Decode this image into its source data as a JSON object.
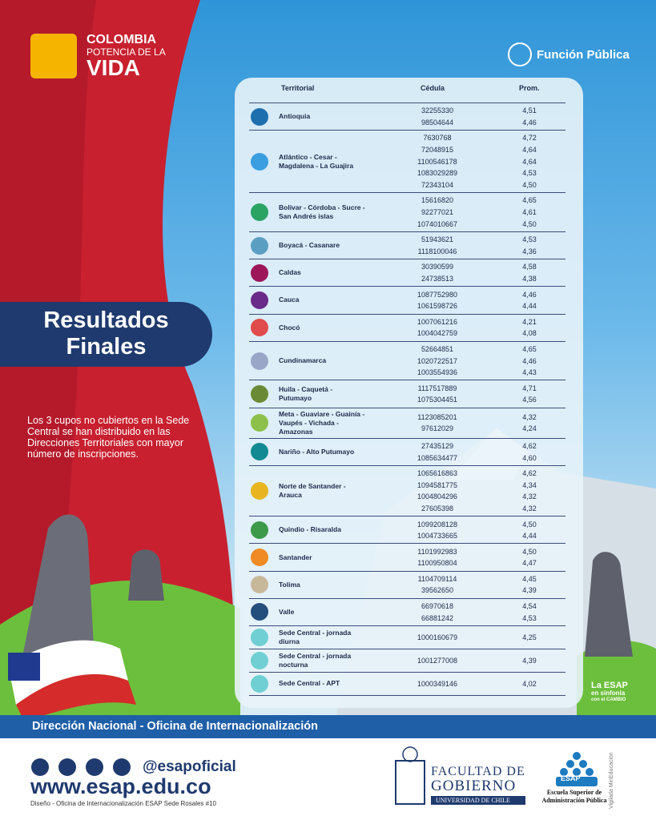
{
  "header": {
    "brand": [
      "COLOMBIA",
      "POTENCIA DE LA",
      "VIDA"
    ],
    "agency": "Función Pública"
  },
  "title": [
    "Resultados",
    "Finales"
  ],
  "note": "Los 3 cupos no cubiertos en la Sede Central se han distribuido en las Direcciones Territoriales con mayor número de inscripciones.",
  "table": {
    "columns": [
      "Territorial",
      "Cédula",
      "Prom."
    ],
    "groups": [
      {
        "territory": "Antioquia",
        "color": "#1d6fae",
        "rows": [
          [
            "32255330",
            "4,51"
          ],
          [
            "98504644",
            "4,46"
          ]
        ]
      },
      {
        "territory": "Atlántico - Cesar - Magdalena - La Guajira",
        "color": "#3a9ee0",
        "rows": [
          [
            "7630768",
            "4,72"
          ],
          [
            "72048915",
            "4,64"
          ],
          [
            "1100546178",
            "4,64"
          ],
          [
            "1083029289",
            "4,53"
          ],
          [
            "72343104",
            "4,50"
          ]
        ]
      },
      {
        "territory": "Bolivar - Córdoba - Sucre - San Andrés islas",
        "color": "#2aa363",
        "rows": [
          [
            "15616820",
            "4,65"
          ],
          [
            "92277021",
            "4,61"
          ],
          [
            "1074010667",
            "4,50"
          ]
        ]
      },
      {
        "territory": "Boyacá - Casanare",
        "color": "#5a9fc2",
        "rows": [
          [
            "51943621",
            "4,53"
          ],
          [
            "1118100046",
            "4,36"
          ]
        ]
      },
      {
        "territory": "Caldas",
        "color": "#9c1659",
        "rows": [
          [
            "30390599",
            "4,58"
          ],
          [
            "24738513",
            "4,38"
          ]
        ]
      },
      {
        "territory": "Cauca",
        "color": "#6a2a8a",
        "rows": [
          [
            "1087752980",
            "4,46"
          ],
          [
            "1061598726",
            "4,44"
          ]
        ]
      },
      {
        "territory": "Chocó",
        "color": "#e04b4b",
        "rows": [
          [
            "1007061216",
            "4,21"
          ],
          [
            "1004042759",
            "4,08"
          ]
        ]
      },
      {
        "territory": "Cundinamarca",
        "color": "#9aa6c8",
        "rows": [
          [
            "52664851",
            "4,65"
          ],
          [
            "1020722517",
            "4,46"
          ],
          [
            "1003554936",
            "4,43"
          ]
        ]
      },
      {
        "territory": "Huila - Caquetá - Putumayo",
        "color": "#6b8a35",
        "rows": [
          [
            "1117517889",
            "4,71"
          ],
          [
            "1075304451",
            "4,56"
          ]
        ]
      },
      {
        "territory": "Meta - Guaviare - Guainía - Vaupés - Vichada - Amazonas",
        "color": "#8dc04a",
        "rows": [
          [
            "1123085201",
            "4,32"
          ],
          [
            "97612029",
            "4,24"
          ]
        ]
      },
      {
        "territory": "Nariño - Alto Putumayo",
        "color": "#138a93",
        "rows": [
          [
            "27435129",
            "4,62"
          ],
          [
            "1085634477",
            "4,60"
          ]
        ]
      },
      {
        "territory": "Norte de Santander - Arauca",
        "color": "#e8b521",
        "rows": [
          [
            "1065616863",
            "4,62"
          ],
          [
            "1094581775",
            "4,34"
          ],
          [
            "1004804296",
            "4,32"
          ],
          [
            "27605398",
            "4,32"
          ]
        ]
      },
      {
        "territory": "Quindio - Risaralda",
        "color": "#3c9a48",
        "rows": [
          [
            "1099208128",
            "4,50"
          ],
          [
            "1004733665",
            "4,44"
          ]
        ]
      },
      {
        "territory": "Santander",
        "color": "#f08a24",
        "rows": [
          [
            "1101992983",
            "4,50"
          ],
          [
            "1100950804",
            "4,47"
          ]
        ]
      },
      {
        "territory": "Tolima",
        "color": "#c8b89a",
        "rows": [
          [
            "1104709114",
            "4,45"
          ],
          [
            "39562650",
            "4,39"
          ]
        ]
      },
      {
        "territory": "Valle",
        "color": "#244f7d",
        "rows": [
          [
            "66970618",
            "4,54"
          ],
          [
            "66881242",
            "4,53"
          ]
        ]
      },
      {
        "territory": "Sede Central - jornada diurna",
        "color": "#6fcfd3",
        "rows": [
          [
            "1000160679",
            "4,25"
          ]
        ]
      },
      {
        "territory": "Sede Central - jornada nocturna",
        "color": "#6fcfd3",
        "rows": [
          [
            "1001277008",
            "4,39"
          ]
        ]
      },
      {
        "territory": "Sede Central - APT",
        "color": "#6fcfd3",
        "rows": [
          [
            "1000349146",
            "4,02"
          ]
        ]
      }
    ]
  },
  "side_logo": [
    "La ESAP",
    "en sinfonía",
    "con el CAMBIO"
  ],
  "banner": "Dirección Nacional - Oficina de Internacionalización",
  "footer": {
    "handle": "@esapoficial",
    "url": "www.esap.edu.co",
    "credit": "Diseño - Oficina de Internacionalización ESAP Sede Rosales #10",
    "university": [
      "FACULTAD DE",
      "GOBIERNO",
      "UNIVERSIDAD DE CHILE"
    ],
    "school": {
      "acronym": "ESAP",
      "name": [
        "Escuela Superior de",
        "Administración Pública"
      ]
    },
    "vigilada": "Vigilada MinEducación"
  }
}
